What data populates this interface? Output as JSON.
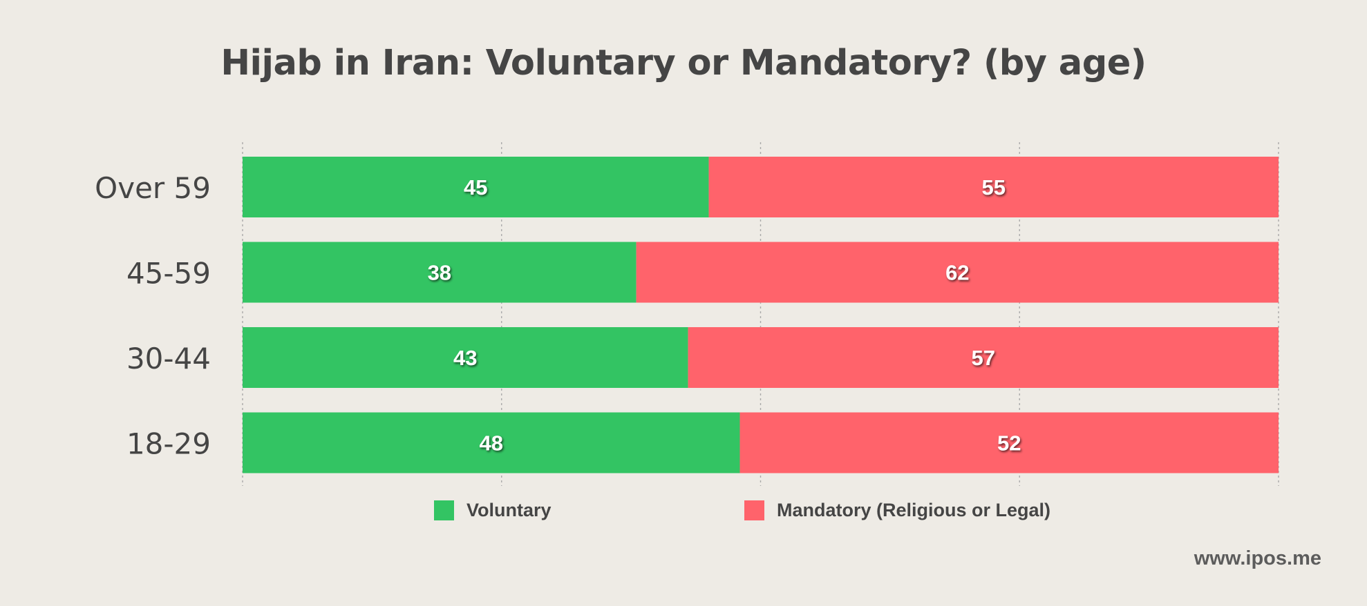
{
  "chart_data": {
    "type": "bar",
    "orientation": "horizontal",
    "stacked": true,
    "title": "Hijab in Iran: Voluntary or Mandatory? (by age)",
    "categories": [
      "Over 59",
      "45-59",
      "30-44",
      "18-29"
    ],
    "series": [
      {
        "name": "Voluntary",
        "values": [
          45,
          38,
          43,
          48
        ],
        "color": "#33c463"
      },
      {
        "name": "Mandatory (Religious or Legal)",
        "values": [
          55,
          62,
          57,
          52
        ],
        "color": "#ff636b"
      }
    ],
    "xlim": [
      0,
      100
    ],
    "xgrid": "dotted",
    "gridlines_at": [
      0,
      25,
      50,
      75,
      100
    ],
    "legend_position": "bottom",
    "text_color": "#454545"
  },
  "legend": {
    "voluntary_label": "Voluntary",
    "mandatory_label": "Mandatory (Religious or Legal)"
  },
  "footer": {
    "source": "www.ipos.me"
  }
}
